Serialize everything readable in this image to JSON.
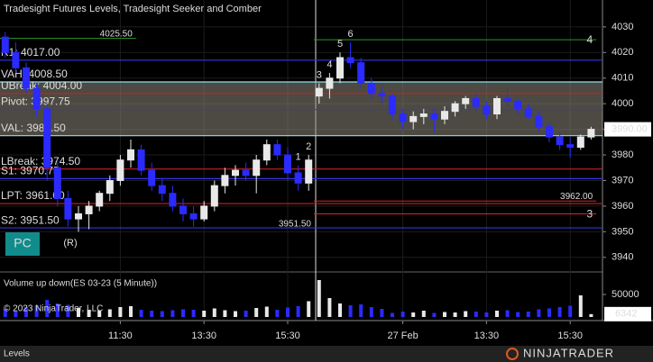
{
  "chart_data": [
    {
      "type": "candlestick",
      "title": "Tradesight Futures Levels, Tradesight Seeker and Comber",
      "categories": [
        null,
        null,
        null,
        null,
        null,
        null,
        null,
        null,
        null,
        null,
        null,
        "11:30",
        null,
        null,
        null,
        null,
        null,
        null,
        null,
        "13:30",
        null,
        null,
        null,
        null,
        null,
        null,
        null,
        "15:30",
        null,
        null,
        null,
        null,
        null,
        null,
        null,
        null,
        null,
        null,
        "27 Feb",
        null,
        null,
        null,
        null,
        null,
        null,
        null,
        "13:30",
        null,
        null,
        null,
        null,
        null,
        null,
        null,
        "15:30",
        null,
        null
      ],
      "open": [
        4026,
        4020,
        4014,
        4006,
        3998,
        3975,
        3963,
        3955,
        3957,
        3960,
        3965,
        3970,
        3978,
        3982,
        3974,
        3968,
        3965,
        3960,
        3957,
        3955,
        3960,
        3968,
        3972,
        3974,
        3972,
        3978,
        3984,
        3980,
        3973,
        3969,
        4003,
        4006,
        4010,
        4018,
        4016,
        4008,
        4004,
        4003,
        3996,
        3993,
        3995,
        3996,
        3994,
        3997,
        4000,
        4002,
        3999,
        3996,
        4002,
        4001,
        3998,
        3995,
        3991,
        3987,
        3984,
        3983,
        3987
      ],
      "high": [
        4028,
        4024,
        4016,
        4008,
        4000,
        3978,
        3966,
        3960,
        3962,
        3966,
        3972,
        3980,
        3986,
        3984,
        3977,
        3971,
        3968,
        3963,
        3960,
        3962,
        3970,
        3975,
        3976,
        3977,
        3980,
        3986,
        3986,
        3983,
        3976,
        3980,
        4008,
        4012,
        4020,
        4024,
        4018,
        4010,
        4007,
        4004,
        3998,
        3997,
        3998,
        3998,
        3999,
        4001,
        4003,
        4004,
        4001,
        4003,
        4006,
        4002,
        4000,
        3997,
        3993,
        3989,
        3987,
        3988,
        3991
      ],
      "low": [
        4018,
        4012,
        4004,
        3995,
        3970,
        3960,
        3952,
        3950,
        3951,
        3958,
        3962,
        3968,
        3975,
        3972,
        3966,
        3962,
        3958,
        3954,
        3952,
        3954,
        3958,
        3965,
        3968,
        3970,
        3965,
        3976,
        3978,
        3970,
        3966,
        3966,
        4000,
        4002,
        4008,
        4014,
        4006,
        4002,
        4000,
        3994,
        3990,
        3990,
        3992,
        3989,
        3992,
        3995,
        3998,
        3997,
        3994,
        3994,
        3999,
        3996,
        3994,
        3989,
        3985,
        3982,
        3979,
        3982,
        3986
      ],
      "close": [
        4020,
        4014,
        4006,
        3998,
        3975,
        3963,
        3955,
        3957,
        3960,
        3965,
        3970,
        3978,
        3982,
        3974,
        3968,
        3965,
        3960,
        3957,
        3955,
        3960,
        3968,
        3972,
        3974,
        3972,
        3978,
        3984,
        3980,
        3973,
        3969,
        3978,
        4006,
        4010,
        4018,
        4016,
        4008,
        4004,
        4003,
        3996,
        3993,
        3995,
        3996,
        3994,
        3997,
        4000,
        4002,
        3999,
        3996,
        4002,
        4001,
        3998,
        3995,
        3991,
        3987,
        3984,
        3983,
        3987,
        3990
      ],
      "up_color": "#e8e8e8",
      "down_color": "#2b2bff",
      "ylim": [
        3935,
        4040.5
      ],
      "yticks": [
        3940,
        3950,
        3960,
        3970,
        3980,
        3990,
        4000,
        4010,
        4020,
        4030
      ],
      "last_price": {
        "value": 3990,
        "label": "3990.00"
      },
      "levels": [
        {
          "label": "R1: 4017.00",
          "value": 4017,
          "color": "#3535e0"
        },
        {
          "label": "VAH: 4008.50",
          "value": 4008.5,
          "color": "#8fe0ee"
        },
        {
          "label": "UBreak: 4004.00",
          "value": 4004,
          "color": "#c42222"
        },
        {
          "label": "Pivot: 3997.75",
          "value": 3997.75,
          "color": "#3535e0"
        },
        {
          "label": "VAL: 3987.50",
          "value": 3987.5,
          "color": "#8fe0ee"
        },
        {
          "label": "LBreak: 3974.50",
          "value": 3974.5,
          "color": "#c42222"
        },
        {
          "label": "S1: 3970.75",
          "value": 3970.75,
          "color": "#3535e0"
        },
        {
          "label": "LPT: 3961.00",
          "value": 3961,
          "color": "#c42222"
        },
        {
          "label": "S2: 3951.50",
          "value": 3951.5,
          "color": "#3535e0"
        }
      ],
      "value_area_color": "#8a8678",
      "targets": [
        {
          "value": 4025.5,
          "label": "4025.50",
          "color": "#2a9a2a"
        },
        {
          "value": 4025,
          "name": "4",
          "color": "#2a9a2a"
        },
        {
          "value": 3962,
          "label": "3962.00",
          "color": "#e02020"
        },
        {
          "value": 3957,
          "name": "3",
          "color": "#e02020"
        },
        {
          "value": 3951.5,
          "label": "3951.50",
          "color": "#e02020"
        }
      ],
      "wave_labels": [
        "6",
        "5",
        "4",
        "3",
        "2",
        "1"
      ],
      "wave_color": "#33d0d0",
      "reversal_label": "(R)",
      "reversal_color": "#e02020"
    },
    {
      "type": "bar",
      "title": "Volume up down(ES 03-23 (5 Minute))",
      "values": [
        18000,
        14000,
        22000,
        26000,
        38000,
        30000,
        27000,
        20000,
        16000,
        15000,
        17000,
        22000,
        24000,
        16000,
        14000,
        13000,
        15000,
        17000,
        16000,
        14000,
        19000,
        15000,
        13000,
        14000,
        20000,
        23000,
        16000,
        21000,
        24000,
        35000,
        82000,
        42000,
        30000,
        26000,
        28000,
        22000,
        18000,
        9000,
        12000,
        10000,
        14000,
        9000,
        11000,
        10000,
        13000,
        12000,
        10000,
        14000,
        15000,
        11000,
        12000,
        17000,
        19000,
        22000,
        25000,
        48000,
        6342
      ],
      "ylim": [
        0,
        94000
      ],
      "yticks": [
        50000
      ]
    }
  ],
  "ui": {
    "button": "PC",
    "copyright": "© 2023 NinjaTrader, LLC",
    "tab": "Levels",
    "logo": "NINJATRADER"
  }
}
